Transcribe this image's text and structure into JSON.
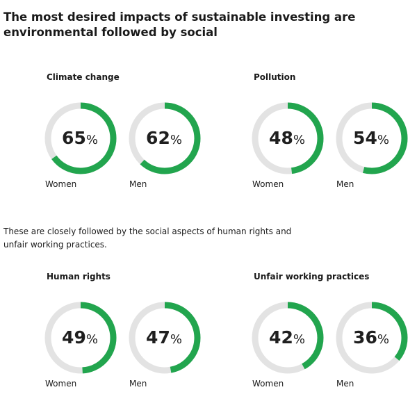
{
  "title": "The most desired impacts of sustainable investing are environmental followed by social",
  "intro": "These are closely followed by the social aspects of human rights and unfair working practices.",
  "colors": {
    "ring": "#22a54e",
    "track": "#e3e3e3"
  },
  "chart_data": [
    {
      "type": "donut",
      "title": "Climate change",
      "categories": [
        "Women",
        "Men"
      ],
      "values": [
        65,
        62
      ],
      "value_labels": [
        "65",
        "62"
      ],
      "unit": "%"
    },
    {
      "type": "donut",
      "title": "Pollution",
      "categories": [
        "Women",
        "Men"
      ],
      "values": [
        48,
        54
      ],
      "value_labels": [
        "48",
        "54"
      ],
      "unit": "%"
    },
    {
      "type": "donut",
      "title": "Human rights",
      "categories": [
        "Women",
        "Men"
      ],
      "values": [
        49,
        47
      ],
      "value_labels": [
        "49",
        "47"
      ],
      "unit": "%"
    },
    {
      "type": "donut",
      "title": "Unfair working practices",
      "categories": [
        "Women",
        "Men"
      ],
      "values": [
        42,
        36
      ],
      "value_labels": [
        "42",
        "36"
      ],
      "unit": "%"
    }
  ]
}
